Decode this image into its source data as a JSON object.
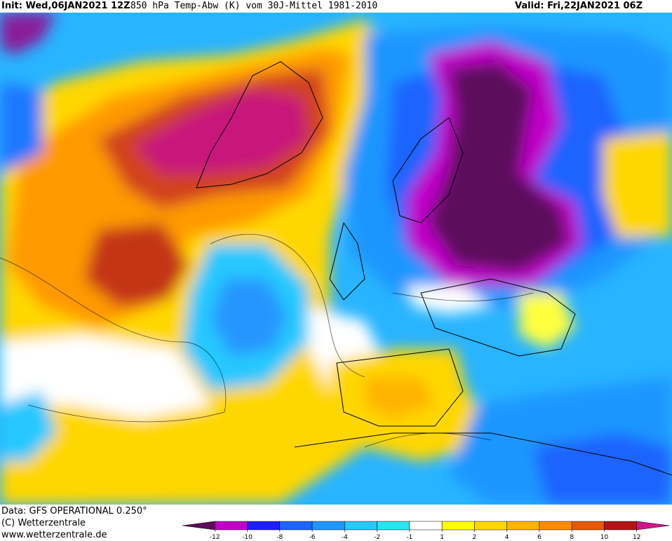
{
  "header": {
    "init_label": "Init: Wed,06JAN2021 12Z",
    "title": "850 hPa Temp-Abw (K) vom 30J-Mittel 1981-2010",
    "valid_label": "Valid: Fri,22JAN2021 06Z"
  },
  "footer": {
    "data_source": "Data: GFS OPERATIONAL 0.250°",
    "copyright": "(C) Wetterzentrale",
    "website": "www.wetterzentrale.de"
  },
  "legend": {
    "tick_labels": [
      "-12",
      "-10",
      "-8",
      "-6",
      "-4",
      "-2",
      "-1",
      "1",
      "2",
      "4",
      "6",
      "8",
      "10",
      "12"
    ],
    "colors": [
      "#5c0a5c",
      "#c000c8",
      "#1e1eff",
      "#1e64ff",
      "#1e96ff",
      "#28c8ff",
      "#28e6f0",
      "#ffffff",
      "#ffff00",
      "#ffd700",
      "#ffb400",
      "#ff8c00",
      "#e65a00",
      "#b41414",
      "#d2148c"
    ]
  },
  "colors": {
    "warm_extreme": "#c8147a",
    "warm_strong": "#b43214",
    "warm_orange": "#ff8c00",
    "warm_yellow": "#ffd700",
    "neutral": "#ffffff",
    "cool_cyan": "#28c8ff",
    "cool_blue": "#1e78ff",
    "cold_purple": "#c000c8",
    "cold_extreme": "#5c0a5c"
  }
}
